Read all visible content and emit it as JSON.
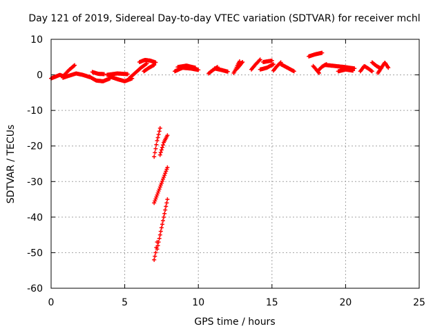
{
  "chart_data": {
    "type": "scatter",
    "title": "Day 121 of 2019, Sidereal Day-to-day VTEC variation (SDTVAR) for receiver mchl",
    "xlabel": "GPS time / hours",
    "ylabel": "SDTVAR / TECUs",
    "xlim": [
      0,
      25
    ],
    "ylim": [
      -60,
      10
    ],
    "xticks": [
      0,
      5,
      10,
      15,
      20,
      25
    ],
    "yticks": [
      10,
      0,
      -10,
      -20,
      -30,
      -40,
      -50,
      -60
    ],
    "xtick_labels": [
      "0",
      "5",
      "10",
      "15",
      "20",
      "25"
    ],
    "ytick_labels": [
      "10",
      "0",
      "-10",
      "-20",
      "-30",
      "-40",
      "-50",
      "-60"
    ],
    "grid": true,
    "marker": "+",
    "series_color": "#ff0000",
    "segments": [
      {
        "x0": 0.0,
        "x1": 0.9,
        "y": [
          -1.0,
          -0.5,
          0.0,
          -0.5
        ]
      },
      {
        "x0": 0.9,
        "x1": 1.6,
        "y": [
          0.0,
          1.5,
          2.7
        ]
      },
      {
        "x0": 0.8,
        "x1": 2.6,
        "y": [
          -0.8,
          -0.2,
          0.4,
          0.0,
          -0.6
        ]
      },
      {
        "x0": 2.6,
        "x1": 4.0,
        "y": [
          -0.5,
          -1.6,
          -1.8,
          -1.0
        ]
      },
      {
        "x0": 2.8,
        "x1": 3.6,
        "y": [
          0.8,
          0.3,
          0.2
        ]
      },
      {
        "x0": 4.0,
        "x1": 5.5,
        "y": [
          -0.5,
          -1.2,
          -1.8,
          -1.0
        ]
      },
      {
        "x0": 3.8,
        "x1": 5.2,
        "y": [
          0.0,
          0.4,
          0.2
        ]
      },
      {
        "x0": 5.3,
        "x1": 6.5,
        "y": [
          -1.0,
          0.5,
          2.0,
          3.2
        ]
      },
      {
        "x0": 6.0,
        "x1": 7.1,
        "y": [
          3.6,
          4.2,
          4.0,
          3.5
        ]
      },
      {
        "x0": 6.3,
        "x1": 7.0,
        "y": [
          1.0,
          2.0,
          2.8
        ]
      },
      {
        "x0": 7.0,
        "x1": 7.4,
        "y": [
          -23.0,
          -18.5,
          -15.0
        ]
      },
      {
        "x0": 7.4,
        "x1": 7.9,
        "y": [
          -22.5,
          -19.0,
          -17.0
        ]
      },
      {
        "x0": 7.0,
        "x1": 7.9,
        "y": [
          -36.0,
          -31.0,
          -26.0
        ]
      },
      {
        "x0": 7.2,
        "x1": 7.9,
        "y": [
          -49.0,
          -42.0,
          -35.0
        ]
      },
      {
        "x0": 7.0,
        "x1": 7.2,
        "y": [
          -52.0,
          -50.0,
          -47.0
        ]
      },
      {
        "x0": 8.4,
        "x1": 10.0,
        "y": [
          1.0,
          2.0,
          1.8,
          1.4
        ]
      },
      {
        "x0": 8.6,
        "x1": 9.8,
        "y": [
          2.2,
          2.6,
          2.0
        ]
      },
      {
        "x0": 10.7,
        "x1": 11.3,
        "y": [
          0.4,
          1.4,
          2.2
        ]
      },
      {
        "x0": 11.1,
        "x1": 12.0,
        "y": [
          1.8,
          1.4,
          0.9
        ]
      },
      {
        "x0": 12.4,
        "x1": 12.8,
        "y": [
          0.5,
          1.5,
          2.8,
          3.8
        ]
      },
      {
        "x0": 12.6,
        "x1": 13.0,
        "y": [
          1.6,
          2.6,
          3.6
        ]
      },
      {
        "x0": 13.6,
        "x1": 14.2,
        "y": [
          1.5,
          3.0,
          4.3
        ]
      },
      {
        "x0": 14.2,
        "x1": 15.1,
        "y": [
          1.5,
          2.0,
          3.0
        ]
      },
      {
        "x0": 14.4,
        "x1": 15.0,
        "y": [
          3.6,
          4.0
        ]
      },
      {
        "x0": 15.1,
        "x1": 15.6,
        "y": [
          1.2,
          2.5,
          3.5
        ]
      },
      {
        "x0": 15.6,
        "x1": 16.5,
        "y": [
          3.0,
          2.0,
          1.0
        ]
      },
      {
        "x0": 17.5,
        "x1": 18.4,
        "y": [
          5.2,
          5.8,
          6.2
        ]
      },
      {
        "x0": 17.8,
        "x1": 18.2,
        "y": [
          2.5,
          1.5,
          0.5
        ]
      },
      {
        "x0": 18.1,
        "x1": 18.7,
        "y": [
          1.0,
          2.3,
          3.0
        ]
      },
      {
        "x0": 18.6,
        "x1": 20.6,
        "y": [
          2.8,
          2.5,
          2.2,
          1.8
        ]
      },
      {
        "x0": 19.5,
        "x1": 20.5,
        "y": [
          1.0,
          1.5,
          1.2
        ]
      },
      {
        "x0": 21.0,
        "x1": 21.8,
        "y": [
          1.0,
          2.5,
          1.8,
          1.0
        ]
      },
      {
        "x0": 21.8,
        "x1": 22.4,
        "y": [
          3.5,
          2.5,
          1.8
        ]
      },
      {
        "x0": 22.2,
        "x1": 22.9,
        "y": [
          0.5,
          2.0,
          3.5,
          2.0
        ]
      }
    ]
  }
}
